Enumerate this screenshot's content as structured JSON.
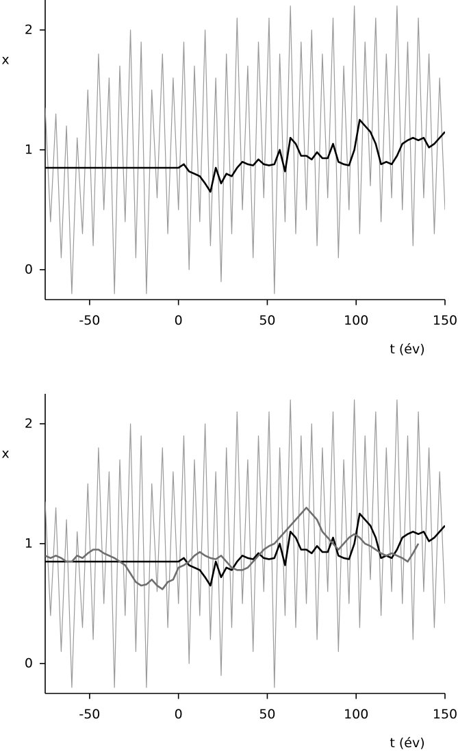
{
  "chart_data": [
    {
      "type": "line",
      "xlabel": "t (év)",
      "ylabel": "x",
      "xlim": [
        -75,
        150
      ],
      "xticks": [
        -50,
        0,
        50,
        100,
        150
      ],
      "ylim": [
        -0.25,
        2.25
      ],
      "yticks": [
        0,
        1,
        2
      ],
      "x": [
        -75,
        -72,
        -69,
        -66,
        -63,
        -60,
        -57,
        -54,
        -51,
        -48,
        -45,
        -42,
        -39,
        -36,
        -33,
        -30,
        -27,
        -24,
        -21,
        -18,
        -15,
        -12,
        -9,
        -6,
        -3,
        0,
        3,
        6,
        9,
        12,
        15,
        18,
        21,
        24,
        27,
        30,
        33,
        36,
        39,
        42,
        45,
        48,
        51,
        54,
        57,
        60,
        63,
        66,
        69,
        72,
        75,
        78,
        81,
        84,
        87,
        90,
        93,
        96,
        99,
        102,
        105,
        108,
        111,
        114,
        117,
        120,
        123,
        126,
        129,
        132,
        135,
        138,
        141,
        144,
        147,
        150
      ],
      "series": [
        {
          "color": "#999999",
          "width": 1.2,
          "values": [
            1.35,
            0.4,
            1.3,
            0.1,
            1.2,
            -0.2,
            1.1,
            0.3,
            1.5,
            0.2,
            1.8,
            0.5,
            1.6,
            -0.2,
            1.7,
            0.4,
            2.0,
            0.1,
            1.9,
            -0.2,
            1.5,
            0.6,
            1.8,
            0.3,
            1.6,
            0.5,
            1.9,
            0.0,
            1.7,
            0.4,
            2.0,
            0.2,
            1.6,
            -0.1,
            1.8,
            0.3,
            2.1,
            0.5,
            1.7,
            0.1,
            1.9,
            0.6,
            2.1,
            -0.2,
            1.8,
            0.4,
            2.2,
            0.3,
            1.9,
            0.5,
            2.0,
            0.2,
            1.8,
            0.6,
            2.1,
            0.1,
            1.7,
            0.5,
            2.2,
            0.3,
            1.9,
            0.7,
            2.1,
            0.4,
            1.8,
            0.6,
            2.2,
            0.5,
            1.9,
            0.2,
            2.1,
            0.6,
            1.8,
            0.3,
            1.6,
            0.5
          ]
        },
        {
          "color": "#000000",
          "width": 2.6,
          "values": [
            0.85,
            0.85,
            0.85,
            0.85,
            0.85,
            0.85,
            0.85,
            0.85,
            0.85,
            0.85,
            0.85,
            0.85,
            0.85,
            0.85,
            0.85,
            0.85,
            0.85,
            0.85,
            0.85,
            0.85,
            0.85,
            0.85,
            0.85,
            0.85,
            0.85,
            0.85,
            0.88,
            0.82,
            0.8,
            0.78,
            0.72,
            0.65,
            0.85,
            0.72,
            0.8,
            0.78,
            0.85,
            0.9,
            0.88,
            0.87,
            0.92,
            0.88,
            0.87,
            0.88,
            1.0,
            0.82,
            1.1,
            1.05,
            0.95,
            0.95,
            0.92,
            0.98,
            0.93,
            0.93,
            1.05,
            0.9,
            0.88,
            0.87,
            1.0,
            1.25,
            1.2,
            1.15,
            1.05,
            0.88,
            0.9,
            0.88,
            0.95,
            1.05,
            1.08,
            1.1,
            1.08,
            1.1,
            1.02,
            1.05,
            1.1,
            1.15
          ]
        }
      ]
    },
    {
      "type": "line",
      "xlabel": "t (év)",
      "ylabel": "x",
      "xlim": [
        -75,
        150
      ],
      "xticks": [
        -50,
        0,
        50,
        100,
        150
      ],
      "ylim": [
        -0.25,
        2.25
      ],
      "yticks": [
        0,
        1,
        2
      ],
      "x": [
        -75,
        -72,
        -69,
        -66,
        -63,
        -60,
        -57,
        -54,
        -51,
        -48,
        -45,
        -42,
        -39,
        -36,
        -33,
        -30,
        -27,
        -24,
        -21,
        -18,
        -15,
        -12,
        -9,
        -6,
        -3,
        0,
        3,
        6,
        9,
        12,
        15,
        18,
        21,
        24,
        27,
        30,
        33,
        36,
        39,
        42,
        45,
        48,
        51,
        54,
        57,
        60,
        63,
        66,
        69,
        72,
        75,
        78,
        81,
        84,
        87,
        90,
        93,
        96,
        99,
        102,
        105,
        108,
        111,
        114,
        117,
        120,
        123,
        126,
        129,
        132,
        135,
        138,
        141,
        144,
        147,
        150
      ],
      "series": [
        {
          "color": "#999999",
          "width": 1.2,
          "values": [
            1.35,
            0.4,
            1.3,
            0.1,
            1.2,
            -0.2,
            1.1,
            0.3,
            1.5,
            0.2,
            1.8,
            0.5,
            1.6,
            -0.2,
            1.7,
            0.4,
            2.0,
            0.1,
            1.9,
            -0.2,
            1.5,
            0.6,
            1.8,
            0.3,
            1.6,
            0.5,
            1.9,
            0.0,
            1.7,
            0.4,
            2.0,
            0.2,
            1.6,
            -0.1,
            1.8,
            0.3,
            2.1,
            0.5,
            1.7,
            0.1,
            1.9,
            0.6,
            2.1,
            -0.2,
            1.8,
            0.4,
            2.2,
            0.3,
            1.9,
            0.5,
            2.0,
            0.2,
            1.8,
            0.6,
            2.1,
            0.1,
            1.7,
            0.5,
            2.2,
            0.3,
            1.9,
            0.7,
            2.1,
            0.4,
            1.8,
            0.6,
            2.2,
            0.5,
            1.9,
            0.2,
            2.1,
            0.6,
            1.8,
            0.3,
            1.6,
            0.5
          ]
        },
        {
          "color": "#000000",
          "width": 2.6,
          "values": [
            0.85,
            0.85,
            0.85,
            0.85,
            0.85,
            0.85,
            0.85,
            0.85,
            0.85,
            0.85,
            0.85,
            0.85,
            0.85,
            0.85,
            0.85,
            0.85,
            0.85,
            0.85,
            0.85,
            0.85,
            0.85,
            0.85,
            0.85,
            0.85,
            0.85,
            0.85,
            0.88,
            0.82,
            0.8,
            0.78,
            0.72,
            0.65,
            0.85,
            0.72,
            0.8,
            0.78,
            0.85,
            0.9,
            0.88,
            0.87,
            0.92,
            0.88,
            0.87,
            0.88,
            1.0,
            0.82,
            1.1,
            1.05,
            0.95,
            0.95,
            0.92,
            0.98,
            0.93,
            0.93,
            1.05,
            0.9,
            0.88,
            0.87,
            1.0,
            1.25,
            1.2,
            1.15,
            1.05,
            0.88,
            0.9,
            0.88,
            0.95,
            1.05,
            1.08,
            1.1,
            1.08,
            1.1,
            1.02,
            1.05,
            1.1,
            1.15
          ]
        },
        {
          "color": "#6e6e6e",
          "width": 2.6,
          "values": [
            0.9,
            0.88,
            0.9,
            0.88,
            0.85,
            0.85,
            0.9,
            0.88,
            0.92,
            0.95,
            0.95,
            0.92,
            0.9,
            0.88,
            0.85,
            0.82,
            0.75,
            0.68,
            0.65,
            0.66,
            0.7,
            0.65,
            0.62,
            0.68,
            0.7,
            0.8,
            0.82,
            0.85,
            0.9,
            0.93,
            0.9,
            0.88,
            0.87,
            0.9,
            0.85,
            0.8,
            0.78,
            0.78,
            0.8,
            0.85,
            0.9,
            0.95,
            0.98,
            1.0,
            1.05,
            1.1,
            1.15,
            1.2,
            1.25,
            1.3,
            1.25,
            1.2,
            1.1,
            1.05,
            1.0,
            0.95,
            1.0,
            1.05,
            1.08,
            1.05,
            1.0,
            0.98,
            0.95,
            0.92,
            0.9,
            0.92,
            0.9,
            0.88,
            0.85,
            0.92,
            1.0,
            null,
            null,
            null,
            null,
            null
          ]
        }
      ]
    }
  ]
}
